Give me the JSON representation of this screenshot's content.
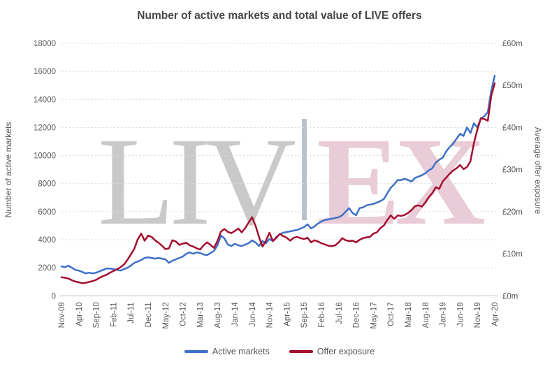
{
  "title": "Number of active markets and total value of LIVE offers",
  "watermark": {
    "left_text": "LIV",
    "right_text": "EX",
    "left_color": "#c9c9c9",
    "right_color": "#e9ccd7",
    "bar_color": "#bac1ca"
  },
  "legend": {
    "items": [
      {
        "label": "Active markets",
        "color": "#3E70C8"
      },
      {
        "label": "Offer exposure",
        "color": "#A50E2D"
      }
    ]
  },
  "left_axis": {
    "title": "Number of active markets",
    "ticks": [
      0,
      2000,
      4000,
      6000,
      8000,
      10000,
      12000,
      14000,
      16000,
      18000
    ],
    "range": [
      0,
      18000
    ]
  },
  "right_axis": {
    "title": "Average offer exposure",
    "tick_values": [
      0,
      10,
      20,
      30,
      40,
      50,
      60
    ],
    "tick_labels": [
      "£0m",
      "£10m",
      "£20m",
      "£30m",
      "£40m",
      "£50m",
      "£60m"
    ],
    "range": [
      0,
      60
    ]
  },
  "x_axis": {
    "label_every": 5
  },
  "chart_data": {
    "type": "line",
    "title": "Number of active markets and total value of LIVE offers",
    "grid": "dashed-horizontal",
    "legend_position": "bottom",
    "x": [
      "Nov-09",
      "Dec-09",
      "Jan-10",
      "Feb-10",
      "Mar-10",
      "Apr-10",
      "May-10",
      "Jun-10",
      "Jul-10",
      "Aug-10",
      "Sep-10",
      "Oct-10",
      "Nov-10",
      "Dec-10",
      "Jan-11",
      "Feb-11",
      "Mar-11",
      "Apr-11",
      "May-11",
      "Jun-11",
      "Jul-11",
      "Aug-11",
      "Sep-11",
      "Oct-11",
      "Nov-11",
      "Dec-11",
      "Jan-12",
      "Feb-12",
      "Mar-12",
      "Apr-12",
      "May-12",
      "Jun-12",
      "Jul-12",
      "Aug-12",
      "Sep-12",
      "Oct-12",
      "Nov-12",
      "Dec-12",
      "Jan-13",
      "Feb-13",
      "Mar-13",
      "Apr-13",
      "May-13",
      "Jun-13",
      "Jul-13",
      "Aug-13",
      "Sep-13",
      "Oct-13",
      "Nov-13",
      "Dec-13",
      "Jan-14",
      "Feb-14",
      "Mar-14",
      "Apr-14",
      "May-14",
      "Jun-14",
      "Jul-14",
      "Aug-14",
      "Sep-14",
      "Oct-14",
      "Nov-14",
      "Dec-14",
      "Jan-15",
      "Feb-15",
      "Mar-15",
      "Apr-15",
      "May-15",
      "Jun-15",
      "Jul-15",
      "Aug-15",
      "Sep-15",
      "Oct-15",
      "Nov-15",
      "Dec-15",
      "Jan-16",
      "Feb-16",
      "Mar-16",
      "Apr-16",
      "May-16",
      "Jun-16",
      "Jul-16",
      "Aug-16",
      "Sep-16",
      "Oct-16",
      "Nov-16",
      "Dec-16",
      "Jan-17",
      "Feb-17",
      "Mar-17",
      "Apr-17",
      "May-17",
      "Jun-17",
      "Jul-17",
      "Aug-17",
      "Sep-17",
      "Oct-17",
      "Nov-17",
      "Dec-17",
      "Jan-18",
      "Feb-18",
      "Mar-18",
      "Apr-18",
      "May-18",
      "Jun-18",
      "Jul-18",
      "Aug-18",
      "Sep-18",
      "Oct-18",
      "Nov-18",
      "Dec-18",
      "Jan-19",
      "Feb-19",
      "Mar-19",
      "Apr-19",
      "May-19",
      "Jun-19",
      "Jul-19",
      "Aug-19",
      "Sep-19",
      "Oct-19",
      "Nov-19",
      "Dec-19",
      "Jan-20",
      "Feb-20",
      "Mar-20",
      "Apr-20"
    ],
    "series": [
      {
        "name": "Active markets",
        "axis": "left",
        "color": "#3E70C8",
        "values": [
          2100,
          2050,
          2150,
          2000,
          1850,
          1800,
          1700,
          1600,
          1650,
          1600,
          1650,
          1750,
          1850,
          1950,
          1950,
          1900,
          1850,
          1800,
          1900,
          2000,
          2150,
          2350,
          2450,
          2550,
          2700,
          2750,
          2700,
          2650,
          2700,
          2650,
          2600,
          2350,
          2500,
          2600,
          2700,
          2800,
          3000,
          3100,
          3000,
          3100,
          3050,
          2950,
          2900,
          3050,
          3200,
          3600,
          4300,
          4100,
          3650,
          3550,
          3700,
          3600,
          3550,
          3650,
          3750,
          3950,
          3800,
          3550,
          3900,
          3750,
          4050,
          3900,
          4200,
          4400,
          4500,
          4550,
          4600,
          4650,
          4700,
          4800,
          4900,
          5100,
          4800,
          4950,
          5150,
          5300,
          5400,
          5450,
          5500,
          5550,
          5600,
          5750,
          6000,
          6250,
          5900,
          5750,
          6250,
          6300,
          6450,
          6500,
          6550,
          6650,
          6750,
          6900,
          7300,
          7700,
          7950,
          8250,
          8250,
          8350,
          8250,
          8150,
          8400,
          8500,
          8600,
          8750,
          8950,
          9100,
          9500,
          9700,
          9850,
          10300,
          10600,
          10850,
          11200,
          11550,
          11400,
          12000,
          11600,
          12300,
          12000,
          12650,
          12800,
          13100,
          14600,
          15700
        ]
      },
      {
        "name": "Offer exposure",
        "axis": "right",
        "color": "#A50E2D",
        "values": [
          4.4,
          4.3,
          4.1,
          3.7,
          3.4,
          3.2,
          3.0,
          3.1,
          3.3,
          3.5,
          3.8,
          4.3,
          4.7,
          5.0,
          5.5,
          5.9,
          6.3,
          6.8,
          7.4,
          8.5,
          9.8,
          11.2,
          13.4,
          14.8,
          13.1,
          14.3,
          14.0,
          13.2,
          12.6,
          11.9,
          11.1,
          11.3,
          13.2,
          12.9,
          12.1,
          12.4,
          12.6,
          12.0,
          11.7,
          11.3,
          11.0,
          12.0,
          12.7,
          12.1,
          11.4,
          13.0,
          15.3,
          15.9,
          15.2,
          14.9,
          15.4,
          16.0,
          15.1,
          16.1,
          17.4,
          18.7,
          16.6,
          14.0,
          11.7,
          13.1,
          15.0,
          13.0,
          13.8,
          14.7,
          14.2,
          13.8,
          13.1,
          13.8,
          14.0,
          13.7,
          13.5,
          13.8,
          12.7,
          13.2,
          12.9,
          12.5,
          12.2,
          11.9,
          11.8,
          12.0,
          12.7,
          13.7,
          13.2,
          13.0,
          13.1,
          12.7,
          13.3,
          13.7,
          13.9,
          14.0,
          14.8,
          15.1,
          16.1,
          16.7,
          18.0,
          19.1,
          18.3,
          19.1,
          19.0,
          19.2,
          19.7,
          20.4,
          21.3,
          21.5,
          21.2,
          22.2,
          23.5,
          24.4,
          25.8,
          25.4,
          27.2,
          28.1,
          29.0,
          29.8,
          30.3,
          31.1,
          30.1,
          30.6,
          32.0,
          36.3,
          39.5,
          42.2,
          42.0,
          41.6,
          47.5,
          50.5
        ]
      }
    ]
  }
}
